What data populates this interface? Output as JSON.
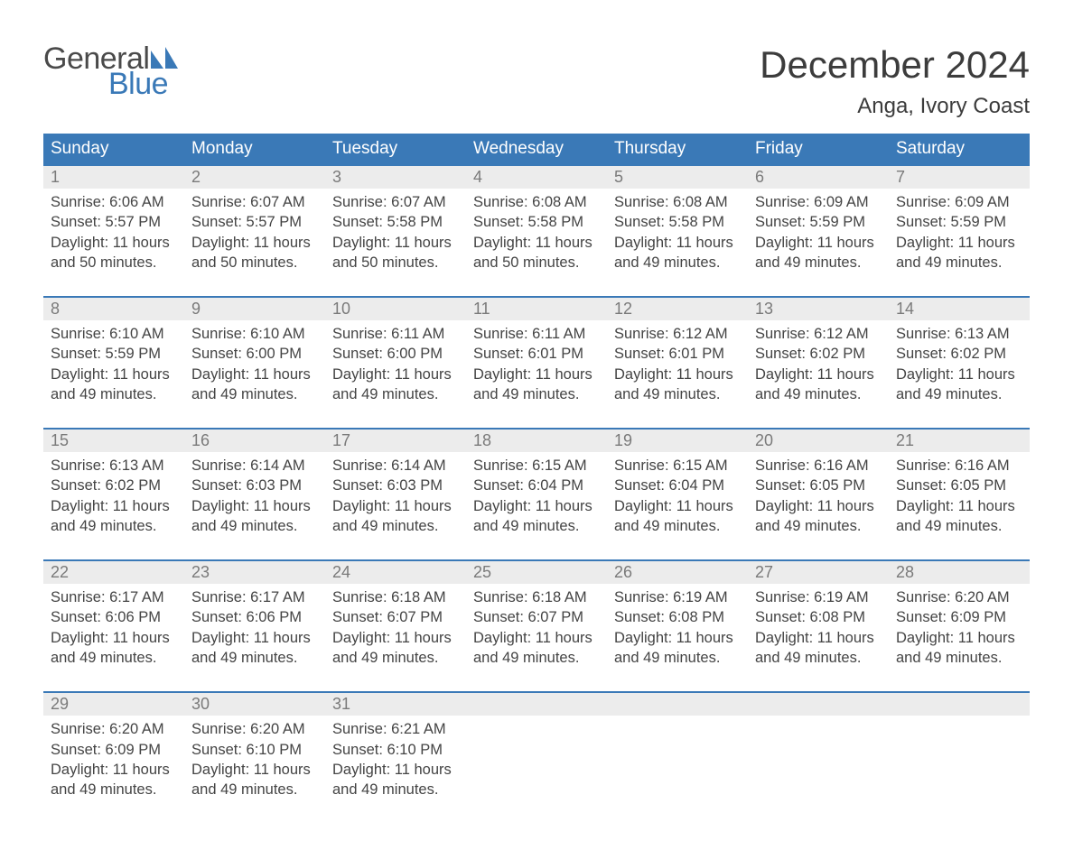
{
  "logo": {
    "word1": "General",
    "word2": "Blue",
    "text_color": "#4a4a4a",
    "accent_color": "#3a79b7"
  },
  "title": "December 2024",
  "location": "Anga, Ivory Coast",
  "colors": {
    "header_bg": "#3a79b7",
    "header_text": "#ffffff",
    "numbar_bg": "#ececec",
    "numbar_text": "#7a7a7a",
    "body_text": "#444444",
    "rule": "#3a79b7",
    "page_bg": "#ffffff"
  },
  "fonts": {
    "title_size": 42,
    "location_size": 24,
    "dow_size": 19,
    "daynum_size": 18,
    "body_size": 16.5
  },
  "days_of_week": [
    "Sunday",
    "Monday",
    "Tuesday",
    "Wednesday",
    "Thursday",
    "Friday",
    "Saturday"
  ],
  "labels": {
    "sunrise": "Sunrise:",
    "sunset": "Sunset:",
    "daylight": "Daylight:"
  },
  "weeks": [
    [
      {
        "n": "1",
        "sunrise": "6:06 AM",
        "sunset": "5:57 PM",
        "daylight": "11 hours and 50 minutes."
      },
      {
        "n": "2",
        "sunrise": "6:07 AM",
        "sunset": "5:57 PM",
        "daylight": "11 hours and 50 minutes."
      },
      {
        "n": "3",
        "sunrise": "6:07 AM",
        "sunset": "5:58 PM",
        "daylight": "11 hours and 50 minutes."
      },
      {
        "n": "4",
        "sunrise": "6:08 AM",
        "sunset": "5:58 PM",
        "daylight": "11 hours and 50 minutes."
      },
      {
        "n": "5",
        "sunrise": "6:08 AM",
        "sunset": "5:58 PM",
        "daylight": "11 hours and 49 minutes."
      },
      {
        "n": "6",
        "sunrise": "6:09 AM",
        "sunset": "5:59 PM",
        "daylight": "11 hours and 49 minutes."
      },
      {
        "n": "7",
        "sunrise": "6:09 AM",
        "sunset": "5:59 PM",
        "daylight": "11 hours and 49 minutes."
      }
    ],
    [
      {
        "n": "8",
        "sunrise": "6:10 AM",
        "sunset": "5:59 PM",
        "daylight": "11 hours and 49 minutes."
      },
      {
        "n": "9",
        "sunrise": "6:10 AM",
        "sunset": "6:00 PM",
        "daylight": "11 hours and 49 minutes."
      },
      {
        "n": "10",
        "sunrise": "6:11 AM",
        "sunset": "6:00 PM",
        "daylight": "11 hours and 49 minutes."
      },
      {
        "n": "11",
        "sunrise": "6:11 AM",
        "sunset": "6:01 PM",
        "daylight": "11 hours and 49 minutes."
      },
      {
        "n": "12",
        "sunrise": "6:12 AM",
        "sunset": "6:01 PM",
        "daylight": "11 hours and 49 minutes."
      },
      {
        "n": "13",
        "sunrise": "6:12 AM",
        "sunset": "6:02 PM",
        "daylight": "11 hours and 49 minutes."
      },
      {
        "n": "14",
        "sunrise": "6:13 AM",
        "sunset": "6:02 PM",
        "daylight": "11 hours and 49 minutes."
      }
    ],
    [
      {
        "n": "15",
        "sunrise": "6:13 AM",
        "sunset": "6:02 PM",
        "daylight": "11 hours and 49 minutes."
      },
      {
        "n": "16",
        "sunrise": "6:14 AM",
        "sunset": "6:03 PM",
        "daylight": "11 hours and 49 minutes."
      },
      {
        "n": "17",
        "sunrise": "6:14 AM",
        "sunset": "6:03 PM",
        "daylight": "11 hours and 49 minutes."
      },
      {
        "n": "18",
        "sunrise": "6:15 AM",
        "sunset": "6:04 PM",
        "daylight": "11 hours and 49 minutes."
      },
      {
        "n": "19",
        "sunrise": "6:15 AM",
        "sunset": "6:04 PM",
        "daylight": "11 hours and 49 minutes."
      },
      {
        "n": "20",
        "sunrise": "6:16 AM",
        "sunset": "6:05 PM",
        "daylight": "11 hours and 49 minutes."
      },
      {
        "n": "21",
        "sunrise": "6:16 AM",
        "sunset": "6:05 PM",
        "daylight": "11 hours and 49 minutes."
      }
    ],
    [
      {
        "n": "22",
        "sunrise": "6:17 AM",
        "sunset": "6:06 PM",
        "daylight": "11 hours and 49 minutes."
      },
      {
        "n": "23",
        "sunrise": "6:17 AM",
        "sunset": "6:06 PM",
        "daylight": "11 hours and 49 minutes."
      },
      {
        "n": "24",
        "sunrise": "6:18 AM",
        "sunset": "6:07 PM",
        "daylight": "11 hours and 49 minutes."
      },
      {
        "n": "25",
        "sunrise": "6:18 AM",
        "sunset": "6:07 PM",
        "daylight": "11 hours and 49 minutes."
      },
      {
        "n": "26",
        "sunrise": "6:19 AM",
        "sunset": "6:08 PM",
        "daylight": "11 hours and 49 minutes."
      },
      {
        "n": "27",
        "sunrise": "6:19 AM",
        "sunset": "6:08 PM",
        "daylight": "11 hours and 49 minutes."
      },
      {
        "n": "28",
        "sunrise": "6:20 AM",
        "sunset": "6:09 PM",
        "daylight": "11 hours and 49 minutes."
      }
    ],
    [
      {
        "n": "29",
        "sunrise": "6:20 AM",
        "sunset": "6:09 PM",
        "daylight": "11 hours and 49 minutes."
      },
      {
        "n": "30",
        "sunrise": "6:20 AM",
        "sunset": "6:10 PM",
        "daylight": "11 hours and 49 minutes."
      },
      {
        "n": "31",
        "sunrise": "6:21 AM",
        "sunset": "6:10 PM",
        "daylight": "11 hours and 49 minutes."
      },
      null,
      null,
      null,
      null
    ]
  ]
}
